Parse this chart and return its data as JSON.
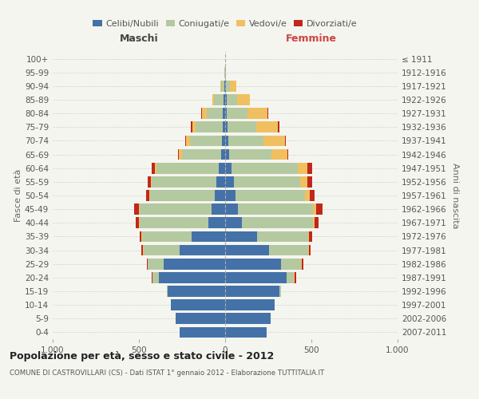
{
  "age_groups": [
    "0-4",
    "5-9",
    "10-14",
    "15-19",
    "20-24",
    "25-29",
    "30-34",
    "35-39",
    "40-44",
    "45-49",
    "50-54",
    "55-59",
    "60-64",
    "65-69",
    "70-74",
    "75-79",
    "80-84",
    "85-89",
    "90-94",
    "95-99",
    "100+"
  ],
  "birth_years": [
    "2007-2011",
    "2002-2006",
    "1997-2001",
    "1992-1996",
    "1987-1991",
    "1982-1986",
    "1977-1981",
    "1972-1976",
    "1967-1971",
    "1962-1966",
    "1957-1961",
    "1952-1956",
    "1947-1951",
    "1942-1946",
    "1937-1941",
    "1932-1936",
    "1927-1931",
    "1922-1926",
    "1917-1921",
    "1912-1916",
    "≤ 1911"
  ],
  "males": {
    "celibi": [
      265,
      285,
      315,
      335,
      385,
      355,
      265,
      195,
      95,
      80,
      60,
      50,
      35,
      25,
      20,
      15,
      12,
      8,
      4,
      1,
      0
    ],
    "coniugati": [
      0,
      0,
      0,
      5,
      35,
      95,
      205,
      285,
      400,
      415,
      375,
      375,
      365,
      225,
      185,
      155,
      95,
      55,
      18,
      2,
      0
    ],
    "vedovi": [
      0,
      0,
      0,
      0,
      0,
      0,
      5,
      5,
      5,
      5,
      5,
      5,
      8,
      18,
      22,
      22,
      28,
      12,
      4,
      0,
      0
    ],
    "divorziati": [
      0,
      0,
      0,
      0,
      5,
      5,
      10,
      12,
      18,
      28,
      18,
      18,
      18,
      5,
      5,
      5,
      5,
      0,
      0,
      0,
      0
    ]
  },
  "females": {
    "nubili": [
      240,
      265,
      285,
      315,
      355,
      325,
      255,
      185,
      95,
      75,
      60,
      52,
      38,
      25,
      18,
      14,
      10,
      8,
      4,
      1,
      0
    ],
    "coniugate": [
      0,
      0,
      0,
      8,
      45,
      115,
      225,
      295,
      415,
      435,
      405,
      385,
      385,
      242,
      202,
      168,
      118,
      62,
      22,
      2,
      0
    ],
    "vedove": [
      0,
      0,
      0,
      0,
      5,
      5,
      5,
      8,
      10,
      18,
      25,
      38,
      55,
      95,
      125,
      125,
      118,
      75,
      38,
      2,
      0
    ],
    "divorziate": [
      0,
      0,
      0,
      0,
      5,
      8,
      10,
      15,
      22,
      38,
      28,
      28,
      28,
      5,
      5,
      8,
      5,
      0,
      0,
      0,
      0
    ]
  },
  "colors": {
    "celibi_nubili": "#4472a8",
    "coniugati": "#b5c9a0",
    "vedovi": "#f0c060",
    "divorziati": "#c0281c"
  },
  "title": "Popolazione per età, sesso e stato civile - 2012",
  "subtitle": "COMUNE DI CASTROVILLARI (CS) - Dati ISTAT 1° gennaio 2012 - Elaborazione TUTTITALIA.IT",
  "xlabel_left": "Maschi",
  "xlabel_right": "Femmine",
  "ylabel_left": "Fasce di età",
  "ylabel_right": "Anni di nascita",
  "xlim": 1000,
  "bg_color": "#f5f5f0",
  "grid_color": "#cccccc"
}
